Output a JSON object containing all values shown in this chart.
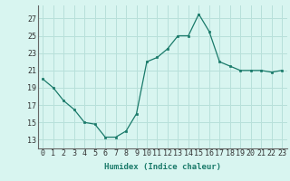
{
  "x": [
    0,
    1,
    2,
    3,
    4,
    5,
    6,
    7,
    8,
    9,
    10,
    11,
    12,
    13,
    14,
    15,
    16,
    17,
    18,
    19,
    20,
    21,
    22,
    23
  ],
  "y": [
    20.0,
    19.0,
    17.5,
    16.5,
    15.0,
    14.8,
    13.3,
    13.3,
    14.0,
    16.0,
    22.0,
    22.5,
    23.5,
    25.0,
    25.0,
    27.5,
    25.5,
    22.0,
    21.5,
    21.0,
    21.0,
    21.0,
    20.8,
    21.0
  ],
  "line_color": "#1a7a6a",
  "marker": "s",
  "marker_size": 2,
  "bg_color": "#d8f5f0",
  "grid_color": "#b8e0da",
  "xlabel": "Humidex (Indice chaleur)",
  "yticks": [
    13,
    15,
    17,
    19,
    21,
    23,
    25,
    27
  ],
  "xticks": [
    0,
    1,
    2,
    3,
    4,
    5,
    6,
    7,
    8,
    9,
    10,
    11,
    12,
    13,
    14,
    15,
    16,
    17,
    18,
    19,
    20,
    21,
    22,
    23
  ],
  "xlim": [
    -0.5,
    23.5
  ],
  "ylim": [
    12.0,
    28.5
  ],
  "xlabel_fontsize": 6.5,
  "tick_fontsize": 6
}
